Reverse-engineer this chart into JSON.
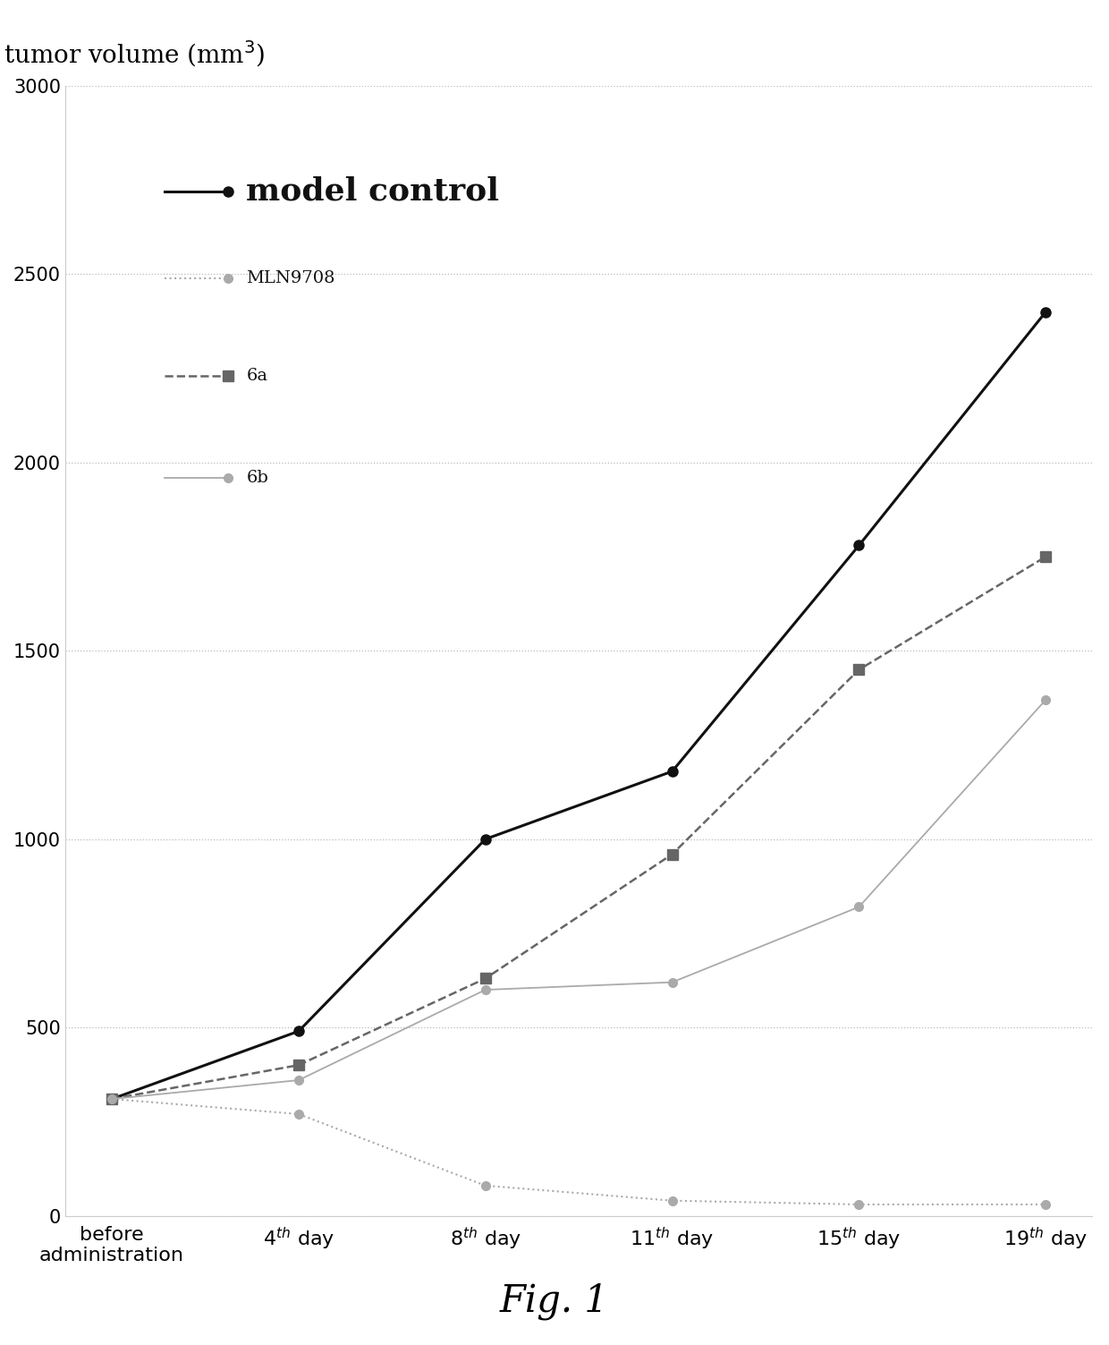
{
  "fig_caption": "Fig. 1",
  "x_positions": [
    0,
    1,
    2,
    3,
    4,
    5
  ],
  "ylim": [
    0,
    3000
  ],
  "yticks": [
    0,
    500,
    1000,
    1500,
    2000,
    2500,
    3000
  ],
  "series": {
    "model_control": {
      "label": "model control",
      "values": [
        310,
        490,
        1000,
        1180,
        1780,
        2400
      ],
      "color": "#111111",
      "linestyle": "-",
      "marker": "o",
      "markersize": 8,
      "linewidth": 2.2,
      "markerfacecolor": "#111111"
    },
    "MLN9708": {
      "label": "MLN9708",
      "values": [
        310,
        270,
        80,
        40,
        30,
        30
      ],
      "color": "#aaaaaa",
      "linestyle": ":",
      "marker": "o",
      "markersize": 7,
      "linewidth": 1.5,
      "markerfacecolor": "#aaaaaa"
    },
    "6a": {
      "label": "6a",
      "values": [
        310,
        400,
        630,
        960,
        1450,
        1750
      ],
      "color": "#666666",
      "linestyle": "--",
      "marker": "s",
      "markersize": 9,
      "linewidth": 1.8,
      "markerfacecolor": "#666666"
    },
    "6b": {
      "label": "6b",
      "values": [
        310,
        360,
        600,
        620,
        820,
        1370
      ],
      "color": "#aaaaaa",
      "linestyle": "-",
      "marker": "o",
      "markersize": 7,
      "linewidth": 1.3,
      "markerfacecolor": "#aaaaaa"
    }
  },
  "background_color": "#ffffff",
  "grid_color": "#bbbbbb",
  "legend_annotations": [
    {
      "label": "model control",
      "y_data": 2720,
      "color": "#111111",
      "linestyle": "-",
      "marker": "o",
      "markersize": 8,
      "linewidth": 2.2,
      "fontsize": 26,
      "bold": true
    },
    {
      "label": "MLN9708",
      "y_data": 2490,
      "color": "#aaaaaa",
      "linestyle": ":",
      "marker": "o",
      "markersize": 7,
      "linewidth": 1.5,
      "fontsize": 14,
      "bold": false
    },
    {
      "label": "6a",
      "y_data": 2230,
      "color": "#666666",
      "linestyle": "--",
      "marker": "s",
      "markersize": 9,
      "linewidth": 1.8,
      "fontsize": 14,
      "bold": false
    },
    {
      "label": "6b",
      "y_data": 1960,
      "color": "#aaaaaa",
      "linestyle": "-",
      "marker": "o",
      "markersize": 7,
      "linewidth": 1.3,
      "fontsize": 14,
      "bold": false
    }
  ]
}
